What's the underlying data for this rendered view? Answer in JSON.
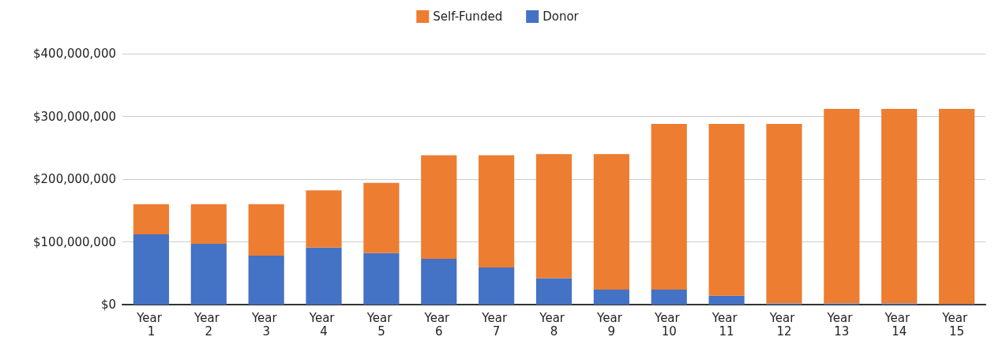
{
  "chart_data": {
    "type": "bar",
    "stacked": true,
    "categories": [
      "Year 1",
      "Year 2",
      "Year 3",
      "Year 4",
      "Year 5",
      "Year 6",
      "Year 7",
      "Year 8",
      "Year 9",
      "Year 10",
      "Year 11",
      "Year 12",
      "Year 13",
      "Year 14",
      "Year 15"
    ],
    "series": [
      {
        "name": "Donor",
        "color": "#4472c4",
        "values": [
          112000000,
          97000000,
          78000000,
          91000000,
          82000000,
          73000000,
          59000000,
          42000000,
          24000000,
          24000000,
          14000000,
          2000000,
          2000000,
          2000000,
          1000000
        ]
      },
      {
        "name": "Self-Funded",
        "color": "#ed7d31",
        "values": [
          48000000,
          63000000,
          82000000,
          91000000,
          112000000,
          165000000,
          179000000,
          198000000,
          216000000,
          264000000,
          274000000,
          286000000,
          310000000,
          310000000,
          311000000
        ]
      }
    ],
    "ylim": [
      0,
      400000000
    ],
    "yticks": [
      {
        "value": 0,
        "label": "$0"
      },
      {
        "value": 100000000,
        "label": "$100,000,000"
      },
      {
        "value": 200000000,
        "label": "$200,000,000"
      },
      {
        "value": 300000000,
        "label": "$300,000,000"
      },
      {
        "value": 400000000,
        "label": "$400,000,000"
      }
    ],
    "grid": "y",
    "legend": "top"
  }
}
